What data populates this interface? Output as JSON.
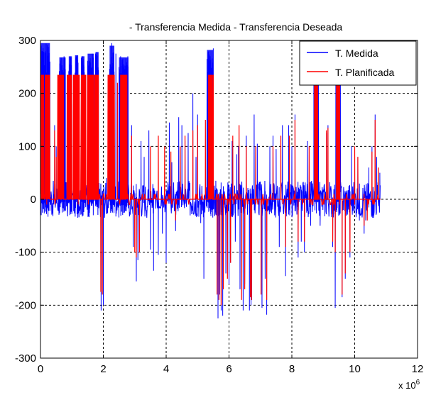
{
  "chart_data": {
    "type": "line",
    "title": "- Transferencia Medida - Transferencia Deseada",
    "xlabel": "",
    "ylabel": "",
    "x_multiplier_label": "x 10",
    "x_multiplier_exponent": "6",
    "xlim": [
      0,
      12
    ],
    "ylim": [
      -300,
      300
    ],
    "x_ticks": [
      0,
      2,
      4,
      6,
      8,
      10,
      12
    ],
    "y_ticks": [
      -300,
      -200,
      -100,
      0,
      100,
      200,
      300
    ],
    "grid": true,
    "legend_position": "top-right",
    "background": "#ffffff",
    "series": [
      {
        "name": "T. Medida",
        "color": "#0000ff",
        "noise_band": [
          -35,
          35
        ],
        "segments": [
          [
            0.0,
            0.3,
            235,
            295
          ],
          [
            0.6,
            0.8,
            235,
            268
          ],
          [
            0.9,
            1.0,
            235,
            270
          ],
          [
            1.1,
            1.2,
            235,
            272
          ],
          [
            1.3,
            1.4,
            235,
            270
          ],
          [
            1.5,
            1.7,
            235,
            275
          ],
          [
            1.75,
            1.85,
            235,
            278
          ],
          [
            2.2,
            2.35,
            235,
            290
          ],
          [
            2.5,
            2.8,
            235,
            268
          ],
          [
            5.3,
            5.5,
            235,
            282
          ],
          [
            8.7,
            8.85,
            235,
            250
          ],
          [
            9.4,
            9.55,
            235,
            245
          ]
        ],
        "spikes": [
          [
            0.12,
            90
          ],
          [
            0.2,
            160
          ],
          [
            0.3,
            260
          ],
          [
            0.45,
            140
          ],
          [
            0.5,
            100
          ],
          [
            0.65,
            255
          ],
          [
            0.75,
            270
          ],
          [
            0.95,
            270
          ],
          [
            1.05,
            180
          ],
          [
            1.15,
            250
          ],
          [
            1.35,
            270
          ],
          [
            1.55,
            260
          ],
          [
            1.65,
            275
          ],
          [
            1.8,
            278
          ],
          [
            1.93,
            -210
          ],
          [
            2.0,
            -200
          ],
          [
            2.1,
            40
          ],
          [
            2.27,
            295
          ],
          [
            2.4,
            275
          ],
          [
            2.55,
            270
          ],
          [
            2.65,
            255
          ],
          [
            2.78,
            270
          ],
          [
            2.9,
            140
          ],
          [
            2.95,
            -90
          ],
          [
            3.05,
            -155
          ],
          [
            3.1,
            -115
          ],
          [
            3.2,
            110
          ],
          [
            3.3,
            80
          ],
          [
            3.45,
            130
          ],
          [
            3.5,
            -95
          ],
          [
            3.6,
            -135
          ],
          [
            3.75,
            -105
          ],
          [
            3.88,
            -65
          ],
          [
            4.0,
            -120
          ],
          [
            4.1,
            145
          ],
          [
            4.18,
            70
          ],
          [
            4.3,
            -60
          ],
          [
            4.4,
            155
          ],
          [
            4.5,
            140
          ],
          [
            4.6,
            110
          ],
          [
            4.7,
            125
          ],
          [
            4.85,
            200
          ],
          [
            4.95,
            80
          ],
          [
            5.0,
            160
          ],
          [
            5.1,
            -45
          ],
          [
            5.2,
            -150
          ],
          [
            5.3,
            265
          ],
          [
            5.4,
            270
          ],
          [
            5.5,
            285
          ],
          [
            5.58,
            35
          ],
          [
            5.65,
            -225
          ],
          [
            5.7,
            -180
          ],
          [
            5.75,
            -210
          ],
          [
            5.8,
            -220
          ],
          [
            5.9,
            -140
          ],
          [
            6.0,
            -160
          ],
          [
            6.05,
            -120
          ],
          [
            6.1,
            110
          ],
          [
            6.2,
            -80
          ],
          [
            6.25,
            85
          ],
          [
            6.3,
            100
          ],
          [
            6.35,
            -170
          ],
          [
            6.45,
            -210
          ],
          [
            6.5,
            -160
          ],
          [
            6.55,
            120
          ],
          [
            6.65,
            -210
          ],
          [
            6.7,
            -200
          ],
          [
            6.8,
            160
          ],
          [
            6.9,
            105
          ],
          [
            7.05,
            -205
          ],
          [
            7.15,
            -150
          ],
          [
            7.2,
            -218
          ],
          [
            7.3,
            100
          ],
          [
            7.4,
            120
          ],
          [
            7.5,
            95
          ],
          [
            7.6,
            -90
          ],
          [
            7.7,
            140
          ],
          [
            7.8,
            -145
          ],
          [
            7.9,
            140
          ],
          [
            8.0,
            100
          ],
          [
            8.1,
            160
          ],
          [
            8.2,
            -110
          ],
          [
            8.3,
            -80
          ],
          [
            8.4,
            -100
          ],
          [
            8.5,
            110
          ],
          [
            8.6,
            -50
          ],
          [
            8.75,
            250
          ],
          [
            8.8,
            230
          ],
          [
            8.9,
            -50
          ],
          [
            9.05,
            20
          ],
          [
            9.1,
            125
          ],
          [
            9.15,
            140
          ],
          [
            9.3,
            -90
          ],
          [
            9.38,
            -205
          ],
          [
            9.45,
            245
          ],
          [
            9.52,
            230
          ],
          [
            9.6,
            -185
          ],
          [
            9.7,
            -150
          ],
          [
            9.85,
            -110
          ],
          [
            9.9,
            100
          ],
          [
            10.1,
            80
          ],
          [
            10.15,
            -40
          ],
          [
            10.3,
            -65
          ],
          [
            10.35,
            -40
          ],
          [
            10.45,
            60
          ],
          [
            10.55,
            100
          ],
          [
            10.6,
            -35
          ],
          [
            10.65,
            160
          ],
          [
            10.7,
            80
          ],
          [
            10.8,
            50
          ]
        ]
      },
      {
        "name": "T. Planificada",
        "color": "#ff0000",
        "values_note": "",
        "segments": [
          [
            0.0,
            0.1,
            235,
            235
          ],
          [
            0.15,
            0.3,
            235,
            235
          ],
          [
            0.55,
            0.75,
            235,
            235
          ],
          [
            0.85,
            1.0,
            235,
            235
          ],
          [
            1.05,
            1.25,
            235,
            235
          ],
          [
            1.3,
            1.45,
            235,
            235
          ],
          [
            1.5,
            1.7,
            235,
            235
          ],
          [
            1.72,
            1.85,
            235,
            235
          ],
          [
            2.15,
            2.35,
            235,
            235
          ],
          [
            2.55,
            2.75,
            235,
            235
          ],
          [
            5.35,
            5.48,
            235,
            235
          ],
          [
            8.72,
            8.82,
            235,
            235
          ],
          [
            9.42,
            9.52,
            235,
            235
          ]
        ],
        "spikes": [
          [
            0.05,
            235
          ],
          [
            0.45,
            130
          ],
          [
            0.5,
            80
          ],
          [
            0.65,
            235
          ],
          [
            0.9,
            235
          ],
          [
            1.1,
            235
          ],
          [
            1.4,
            235
          ],
          [
            1.6,
            235
          ],
          [
            1.92,
            -175
          ],
          [
            1.97,
            -180
          ],
          [
            2.27,
            235
          ],
          [
            2.45,
            220
          ],
          [
            2.6,
            235
          ],
          [
            2.7,
            235
          ],
          [
            2.9,
            120
          ],
          [
            3.0,
            -100
          ],
          [
            3.05,
            -110
          ],
          [
            3.15,
            -100
          ],
          [
            3.5,
            100
          ],
          [
            3.75,
            120
          ],
          [
            3.95,
            100
          ],
          [
            4.15,
            90
          ],
          [
            4.3,
            -40
          ],
          [
            4.45,
            100
          ],
          [
            4.6,
            120
          ],
          [
            4.85,
            130
          ],
          [
            5.0,
            140
          ],
          [
            5.25,
            150
          ],
          [
            5.4,
            235
          ],
          [
            5.5,
            235
          ],
          [
            5.62,
            -180
          ],
          [
            5.68,
            -190
          ],
          [
            5.75,
            -200
          ],
          [
            5.82,
            -170
          ],
          [
            5.95,
            -150
          ],
          [
            6.05,
            -120
          ],
          [
            6.12,
            120
          ],
          [
            6.32,
            140
          ],
          [
            6.4,
            -190
          ],
          [
            6.5,
            -170
          ],
          [
            6.55,
            100
          ],
          [
            6.68,
            -185
          ],
          [
            6.72,
            -190
          ],
          [
            6.85,
            100
          ],
          [
            7.02,
            -180
          ],
          [
            7.2,
            -190
          ],
          [
            7.4,
            100
          ],
          [
            7.65,
            120
          ],
          [
            7.8,
            -90
          ],
          [
            7.92,
            120
          ],
          [
            8.1,
            150
          ],
          [
            8.2,
            -80
          ],
          [
            8.4,
            -80
          ],
          [
            8.55,
            100
          ],
          [
            8.75,
            235
          ],
          [
            8.82,
            235
          ],
          [
            9.1,
            130
          ],
          [
            9.15,
            135
          ],
          [
            9.3,
            -80
          ],
          [
            9.38,
            -100
          ],
          [
            9.48,
            235
          ],
          [
            9.6,
            -180
          ],
          [
            9.7,
            -140
          ],
          [
            9.85,
            -100
          ],
          [
            10.0,
            100
          ],
          [
            10.1,
            80
          ],
          [
            10.3,
            -50
          ],
          [
            10.4,
            -40
          ],
          [
            10.55,
            90
          ],
          [
            10.65,
            150
          ],
          [
            10.75,
            60
          ]
        ]
      }
    ]
  }
}
